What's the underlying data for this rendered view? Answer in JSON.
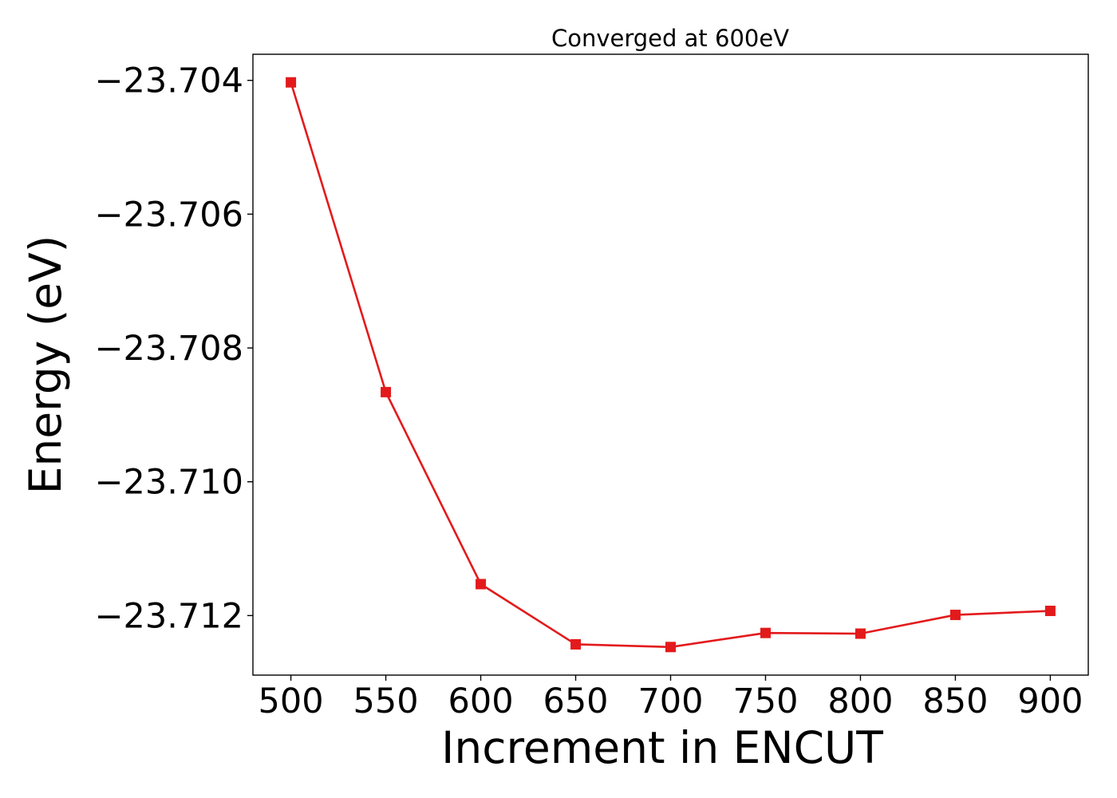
{
  "chart_data": {
    "type": "line",
    "title": "Converged at 600eV",
    "xlabel": "Increment in ENCUT",
    "ylabel": "Energy (eV)",
    "x": [
      500,
      550,
      600,
      650,
      700,
      750,
      800,
      850,
      900
    ],
    "series": [
      {
        "values": [
          -23.70403,
          -23.70866,
          -23.71153,
          -23.71243,
          -23.71247,
          -23.71226,
          -23.71227,
          -23.71199,
          -23.71193
        ],
        "color": "#e31a1c",
        "marker": "square"
      }
    ],
    "xticks": [
      500,
      550,
      600,
      650,
      700,
      750,
      800,
      850,
      900
    ],
    "yticks": [
      -23.704,
      -23.706,
      -23.708,
      -23.71,
      -23.712
    ],
    "xtick_labels": [
      "500",
      "550",
      "600",
      "650",
      "700",
      "750",
      "800",
      "850",
      "900"
    ],
    "ytick_labels": [
      "−23.704",
      "−23.706",
      "−23.708",
      "−23.710",
      "−23.712"
    ],
    "xlim": [
      480,
      920
    ],
    "ylim": [
      -23.71289,
      -23.70361
    ],
    "grid": false,
    "legend": false
  }
}
